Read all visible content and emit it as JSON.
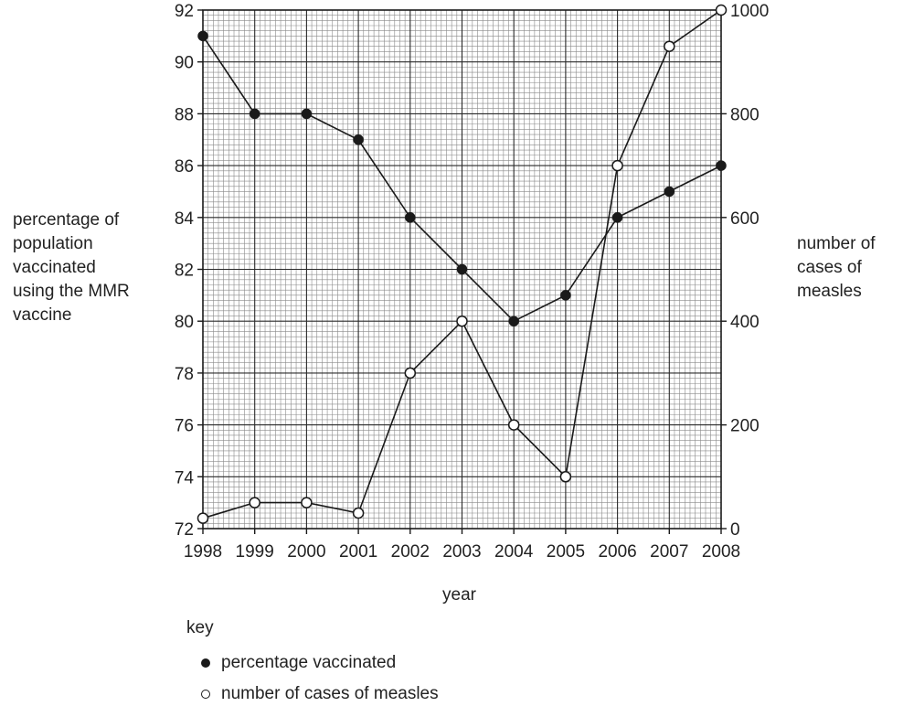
{
  "chart_data": {
    "type": "line",
    "x": [
      "1998",
      "1999",
      "2000",
      "2001",
      "2002",
      "2003",
      "2004",
      "2005",
      "2006",
      "2007",
      "2008"
    ],
    "xlabel": "year",
    "ylabel_left": [
      "percentage of",
      "population",
      "vaccinated",
      "using the MMR",
      "vaccine"
    ],
    "ylabel_right": [
      "number of",
      "cases of",
      "measles"
    ],
    "ylim_left": [
      72,
      92
    ],
    "yticks_left": [
      "72",
      "74",
      "76",
      "78",
      "80",
      "82",
      "84",
      "86",
      "88",
      "90",
      "92"
    ],
    "ylim_right": [
      0,
      1000
    ],
    "yticks_right": [
      "0",
      "200",
      "400",
      "600",
      "800",
      "1000"
    ],
    "grid": true,
    "series": [
      {
        "name": "percentage vaccinated",
        "axis": "left",
        "marker": "filled",
        "values": [
          91,
          88,
          88,
          87,
          84,
          82,
          80,
          81,
          84,
          85,
          86
        ]
      },
      {
        "name": "number of cases of measles",
        "axis": "right",
        "marker": "open",
        "values": [
          20,
          50,
          50,
          30,
          300,
          400,
          200,
          100,
          700,
          930,
          1000
        ]
      }
    ]
  },
  "key": {
    "title": "key",
    "filled_label": "percentage vaccinated",
    "open_label": "number of cases of measles"
  }
}
